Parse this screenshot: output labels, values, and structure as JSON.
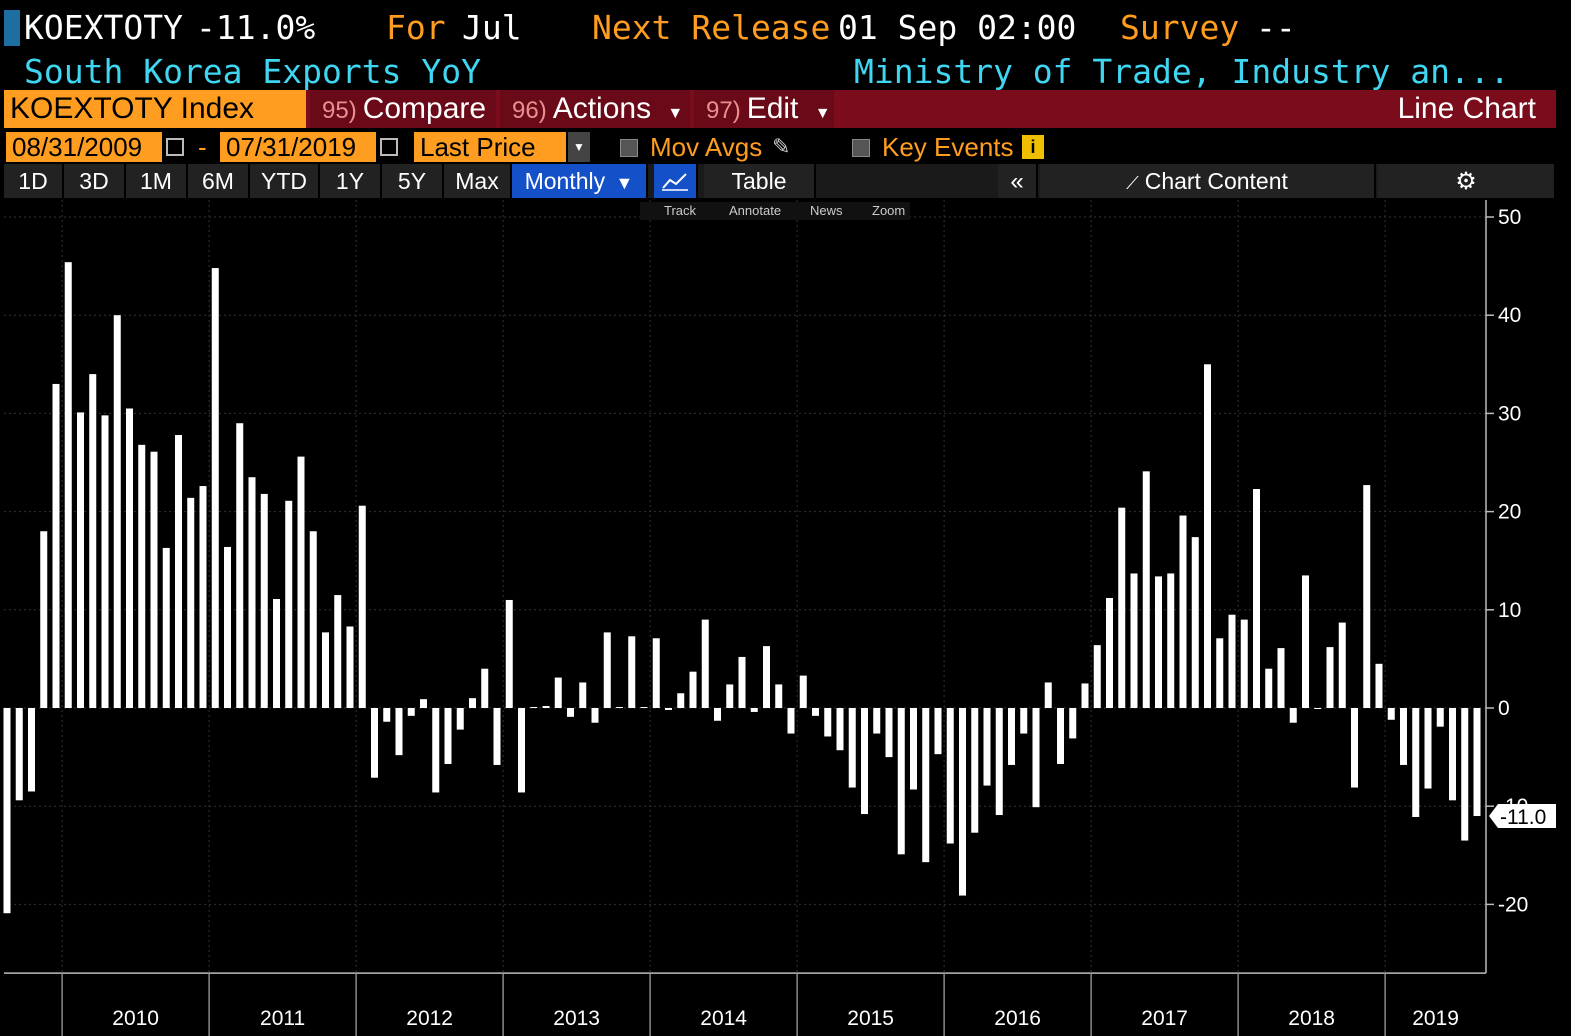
{
  "header": {
    "ticker": "KOEXTOTY",
    "last_value": "-11.0%",
    "for_label": "For",
    "for_period": "Jul",
    "next_release_label": "Next Release",
    "next_release_value": "01 Sep 02:00",
    "survey_label": "Survey",
    "survey_value": "--",
    "description": "South Korea Exports YoY",
    "source": "Ministry of Trade, Industry an..."
  },
  "command_bar": {
    "security": "KOEXTOTY Index",
    "compare_num": "95)",
    "compare": "Compare",
    "actions_num": "96)",
    "actions": "Actions",
    "edit_num": "97)",
    "edit": "Edit",
    "view": "Line Chart"
  },
  "controls": {
    "start_date": "08/31/2009",
    "separator": "-",
    "end_date": "07/31/2019",
    "field": "Last Price",
    "mov_avgs": "Mov Avgs",
    "key_events": "Key Events"
  },
  "timeframes": [
    "1D",
    "3D",
    "1M",
    "6M",
    "YTD",
    "1Y",
    "5Y",
    "Max"
  ],
  "frequency": "Monthly",
  "table_label": "Table",
  "chart_content_label": "Chart Content",
  "mini_toolbar": [
    "Track",
    "Annotate",
    "News",
    "Zoom"
  ],
  "colors": {
    "background": "#000000",
    "bars": "#ffffff",
    "ticker_orange": "#ff9d20",
    "cyan_text": "#3fd6f2",
    "command_bar": "#7a0c1c",
    "active_button": "#1450c8"
  },
  "icons": {
    "calendar": "calendar-icon",
    "pencil": "pencil-icon",
    "info": "info-icon",
    "line_chart": "line-chart-icon",
    "collapse": "double-chevron-left-icon",
    "chart_content": "chart-content-icon",
    "settings": "gear-icon",
    "dropdown": "dropdown-arrow-icon"
  },
  "chart_data": {
    "type": "bar",
    "title": "",
    "xlabel": "",
    "ylabel": "",
    "ylim": [
      -27,
      50
    ],
    "yticks": [
      50,
      40,
      30,
      20,
      10,
      0,
      -10,
      -20
    ],
    "last_value_label": "-11.0",
    "grid": true,
    "axis_side": "right",
    "year_labels": [
      "2010",
      "2011",
      "2012",
      "2013",
      "2014",
      "2015",
      "2016",
      "2017",
      "2018",
      "2019"
    ],
    "start": "2009-08",
    "end": "2019-07",
    "values": [
      -20.9,
      -9.4,
      -8.5,
      18.0,
      33.0,
      45.4,
      30.1,
      34.0,
      29.8,
      40.0,
      30.5,
      26.8,
      26.1,
      16.3,
      27.8,
      21.4,
      22.6,
      44.8,
      16.4,
      29.0,
      23.5,
      21.8,
      11.1,
      21.1,
      25.6,
      18.0,
      7.7,
      11.5,
      8.3,
      20.6,
      -7.1,
      -1.4,
      -4.8,
      -0.8,
      0.9,
      -8.6,
      -5.7,
      -2.2,
      1.0,
      4.0,
      -5.8,
      11.0,
      -8.6,
      0.1,
      0.2,
      3.1,
      -0.9,
      2.6,
      -1.5,
      7.7,
      0.1,
      7.3,
      0.1,
      7.1,
      -0.2,
      1.5,
      3.7,
      9.0,
      -1.3,
      2.4,
      5.2,
      -0.4,
      6.3,
      2.4,
      -2.6,
      3.3,
      -0.8,
      -2.9,
      -4.3,
      -8.1,
      -10.8,
      -2.6,
      -5.0,
      -14.9,
      -8.3,
      -15.7,
      -4.7,
      -13.8,
      -19.1,
      -12.7,
      -7.9,
      -10.9,
      -5.8,
      -2.6,
      -10.1,
      2.6,
      -5.7,
      -3.1,
      2.5,
      6.4,
      11.2,
      20.4,
      13.7,
      24.1,
      13.4,
      13.7,
      19.6,
      17.4,
      35.0,
      7.1,
      9.5,
      9.0,
      22.3,
      4.0,
      6.1,
      -1.5,
      13.5,
      -0.1,
      6.2,
      8.7,
      -8.1,
      22.7,
      4.5,
      -1.2,
      -5.8,
      -11.1,
      -8.2,
      -1.9,
      -9.4,
      -13.5,
      -11.0
    ]
  }
}
